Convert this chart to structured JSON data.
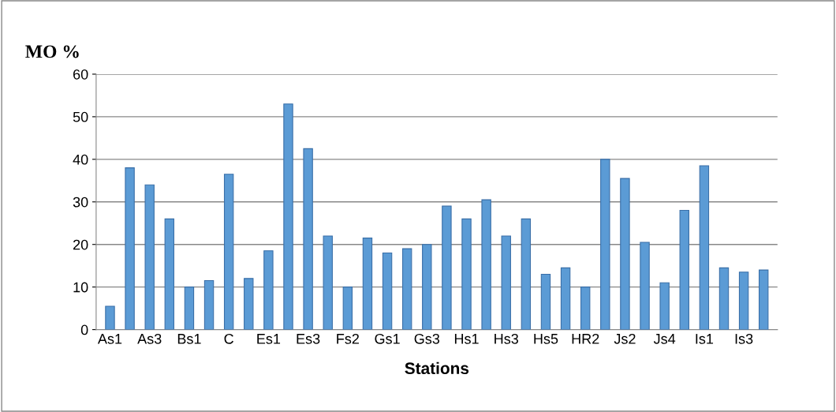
{
  "chart_data": {
    "type": "bar",
    "title": "MO %",
    "xlabel": "Stations",
    "categories": [
      "As1",
      null,
      "As3",
      null,
      "Bs1",
      null,
      "C",
      null,
      "Es1",
      null,
      "Es3",
      null,
      "Fs2",
      null,
      "Gs1",
      null,
      "Gs3",
      null,
      "Hs1",
      null,
      "Hs3",
      null,
      "Hs5",
      null,
      "HR2",
      null,
      "Js2",
      null,
      "Js4",
      null,
      "Is1",
      null,
      "Is3",
      null
    ],
    "values": [
      5.5,
      38,
      34,
      26,
      10,
      11.5,
      36.5,
      12,
      18.5,
      53,
      42.5,
      22,
      10,
      21.5,
      18,
      19,
      20,
      29,
      26,
      30.5,
      22,
      26,
      13,
      14.5,
      10,
      40,
      35.5,
      20.5,
      11,
      28,
      38.5,
      14.5,
      13.5,
      14
    ],
    "color": "#5b9bd5",
    "ylim": [
      0,
      60
    ],
    "yticks": [
      0,
      10,
      20,
      30,
      40,
      50,
      60
    ],
    "grid": "y",
    "legend": false
  }
}
